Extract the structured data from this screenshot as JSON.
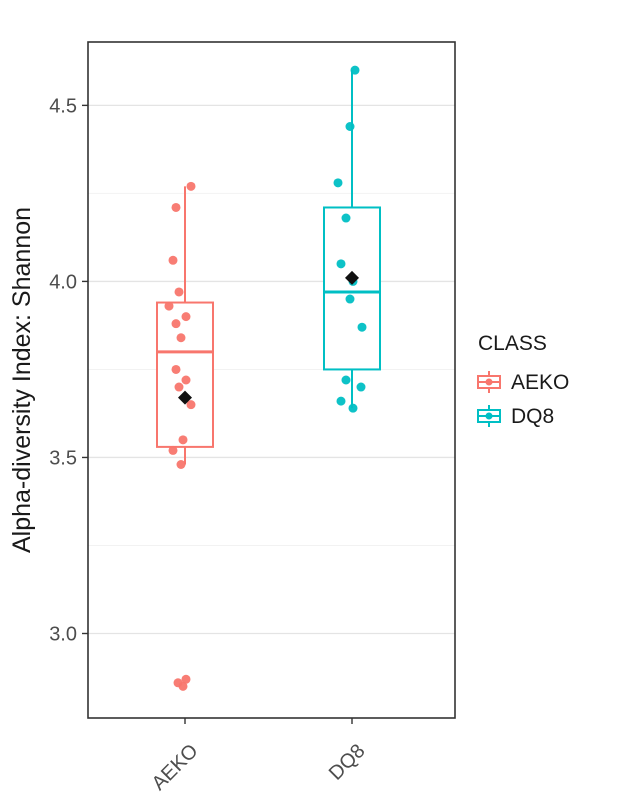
{
  "chart_data": {
    "type": "boxplot",
    "title": "",
    "xlabel": "",
    "ylabel": "Alpha-diversity Index: Shannon",
    "categories": [
      "AEKO",
      "DQ8"
    ],
    "ylim": [
      2.76,
      4.68
    ],
    "yticks": [
      3.0,
      3.5,
      4.0,
      4.5
    ],
    "ytick_labels": [
      "3.0",
      "3.5",
      "4.0",
      "4.5"
    ],
    "yticks_minor": [
      3.25,
      3.75,
      4.25
    ],
    "grid": true,
    "legend": {
      "title": "CLASS",
      "position": "right",
      "items": [
        {
          "label": "AEKO",
          "color": "#F8766D"
        },
        {
          "label": "DQ8",
          "color": "#00BFC4"
        }
      ]
    },
    "series": [
      {
        "name": "AEKO",
        "color": "#F8766D",
        "box": {
          "whisker_low": 3.48,
          "q1": 3.53,
          "median": 3.8,
          "q3": 3.94,
          "whisker_high": 4.27,
          "mean": 3.67
        },
        "points": [
          [
            4.27,
            6
          ],
          [
            4.21,
            -9
          ],
          [
            4.06,
            -12
          ],
          [
            3.97,
            -6
          ],
          [
            3.93,
            -16
          ],
          [
            3.9,
            1
          ],
          [
            3.88,
            -9
          ],
          [
            3.84,
            -4
          ],
          [
            3.75,
            -9
          ],
          [
            3.72,
            1
          ],
          [
            3.7,
            -6
          ],
          [
            3.65,
            6
          ],
          [
            3.55,
            -2
          ],
          [
            3.52,
            -12
          ],
          [
            3.48,
            -4
          ],
          [
            2.87,
            1
          ],
          [
            2.86,
            -7
          ],
          [
            2.85,
            -2
          ]
        ]
      },
      {
        "name": "DQ8",
        "color": "#00BFC4",
        "box": {
          "whisker_low": 3.64,
          "q1": 3.75,
          "median": 3.97,
          "q3": 4.21,
          "whisker_high": 4.6,
          "mean": 4.01
        },
        "points": [
          [
            4.6,
            3
          ],
          [
            4.44,
            -2
          ],
          [
            4.28,
            -14
          ],
          [
            4.18,
            -6
          ],
          [
            4.05,
            -11
          ],
          [
            4.0,
            1
          ],
          [
            3.95,
            -2
          ],
          [
            3.87,
            10
          ],
          [
            3.72,
            -6
          ],
          [
            3.7,
            9
          ],
          [
            3.66,
            -11
          ],
          [
            3.64,
            1
          ]
        ]
      }
    ]
  }
}
